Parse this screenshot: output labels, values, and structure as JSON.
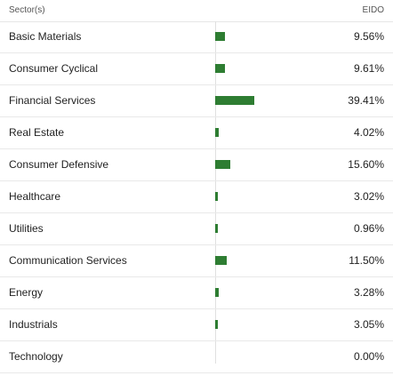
{
  "header": {
    "sector_label": "Sector(s)",
    "ticker_label": "EIDO"
  },
  "bar_color": "#2e7d32",
  "chart_data": {
    "type": "bar",
    "categories": [
      "Basic Materials",
      "Consumer Cyclical",
      "Financial Services",
      "Real Estate",
      "Consumer Defensive",
      "Healthcare",
      "Utilities",
      "Communication Services",
      "Energy",
      "Industrials",
      "Technology"
    ],
    "series": [
      {
        "name": "EIDO",
        "values": [
          9.56,
          9.61,
          39.41,
          4.02,
          15.6,
          3.02,
          0.96,
          11.5,
          3.28,
          3.05,
          0.0
        ]
      }
    ]
  },
  "rows": [
    {
      "label": "Basic Materials",
      "value": "9.56%"
    },
    {
      "label": "Consumer Cyclical",
      "value": "9.61%"
    },
    {
      "label": "Financial Services",
      "value": "39.41%"
    },
    {
      "label": "Real Estate",
      "value": "4.02%"
    },
    {
      "label": "Consumer Defensive",
      "value": "15.60%"
    },
    {
      "label": "Healthcare",
      "value": "3.02%"
    },
    {
      "label": "Utilities",
      "value": "0.96%"
    },
    {
      "label": "Communication Services",
      "value": "11.50%"
    },
    {
      "label": "Energy",
      "value": "3.28%"
    },
    {
      "label": "Industrials",
      "value": "3.05%"
    },
    {
      "label": "Technology",
      "value": "0.00%"
    }
  ]
}
